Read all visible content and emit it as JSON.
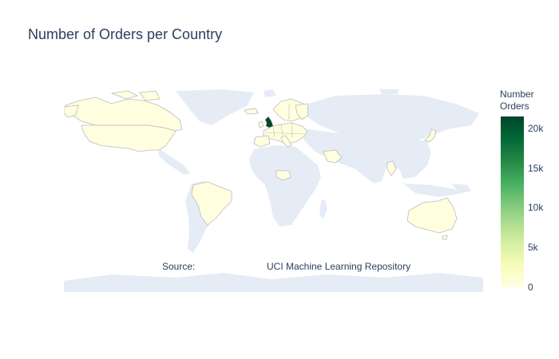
{
  "chart_data": {
    "type": "choropleth",
    "title": "Number of Orders per Country",
    "colorbar": {
      "title_line1": "Number",
      "title_line2": "Orders",
      "tick_labels": [
        "20k",
        "15k",
        "10k",
        "5k",
        "0"
      ],
      "tick_values": [
        20000,
        15000,
        10000,
        5000,
        0
      ],
      "range": [
        0,
        21500
      ],
      "colorscale": [
        "#ffffe5",
        "#f7fcb9",
        "#d9f0a3",
        "#addd8e",
        "#78c679",
        "#41ab5d",
        "#238443",
        "#006837",
        "#004529"
      ]
    },
    "annotations": [
      {
        "text": "Source:"
      },
      {
        "text": "UCI Machine Learning Repository"
      }
    ],
    "land_color": "#e5ecf6",
    "data_country_color": "#ffffe0",
    "highlight": {
      "country": "United Kingdom",
      "value": 21500,
      "color": "#004529"
    }
  }
}
